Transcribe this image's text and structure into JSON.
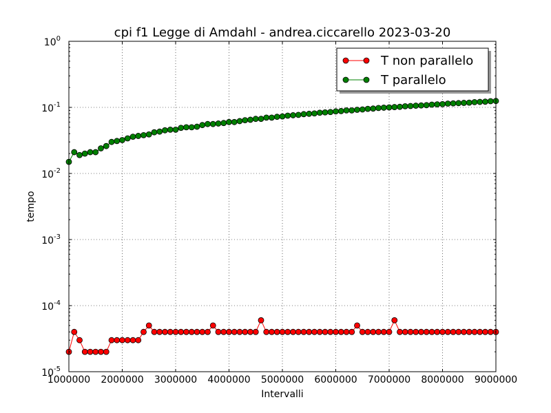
{
  "chart_data": {
    "type": "line",
    "title": "cpi f1  Legge di Amdahl  -  andrea.ciccarello  2023-03-20",
    "xlabel": "Intervalli",
    "ylabel": "tempo",
    "xlim": [
      1000000,
      9000000
    ],
    "ylim": [
      1e-05,
      1
    ],
    "yscale": "log",
    "grid": true,
    "legend_position": "top-right",
    "x_ticks": [
      "1000000",
      "2000000",
      "3000000",
      "4000000",
      "5000000",
      "6000000",
      "7000000",
      "8000000",
      "9000000"
    ],
    "y_ticks": [
      {
        "base": "10",
        "exp": "0"
      },
      {
        "base": "10",
        "exp": "-1"
      },
      {
        "base": "10",
        "exp": "-2"
      },
      {
        "base": "10",
        "exp": "-3"
      },
      {
        "base": "10",
        "exp": "-4"
      },
      {
        "base": "10",
        "exp": "-5"
      }
    ],
    "x": [
      1000000,
      1100000,
      1200000,
      1300000,
      1400000,
      1500000,
      1600000,
      1700000,
      1800000,
      1900000,
      2000000,
      2100000,
      2200000,
      2300000,
      2400000,
      2500000,
      2600000,
      2700000,
      2800000,
      2900000,
      3000000,
      3100000,
      3200000,
      3300000,
      3400000,
      3500000,
      3600000,
      3700000,
      3800000,
      3900000,
      4000000,
      4100000,
      4200000,
      4300000,
      4400000,
      4500000,
      4600000,
      4700000,
      4800000,
      4900000,
      5000000,
      5100000,
      5200000,
      5300000,
      5400000,
      5500000,
      5600000,
      5700000,
      5800000,
      5900000,
      6000000,
      6100000,
      6200000,
      6300000,
      6400000,
      6500000,
      6600000,
      6700000,
      6800000,
      6900000,
      7000000,
      7100000,
      7200000,
      7300000,
      7400000,
      7500000,
      7600000,
      7700000,
      7800000,
      7900000,
      8000000,
      8100000,
      8200000,
      8300000,
      8400000,
      8500000,
      8600000,
      8700000,
      8800000,
      8900000,
      9000000
    ],
    "series": [
      {
        "name": "T non parallelo",
        "color": "#ff0000",
        "values": [
          2e-05,
          4e-05,
          3e-05,
          2e-05,
          2e-05,
          2e-05,
          2e-05,
          2e-05,
          3e-05,
          3e-05,
          3e-05,
          3e-05,
          3e-05,
          3e-05,
          4e-05,
          5e-05,
          4e-05,
          4e-05,
          4e-05,
          4e-05,
          4e-05,
          4e-05,
          4e-05,
          4e-05,
          4e-05,
          4e-05,
          4e-05,
          5e-05,
          4e-05,
          4e-05,
          4e-05,
          4e-05,
          4e-05,
          4e-05,
          4e-05,
          4e-05,
          6e-05,
          4e-05,
          4e-05,
          4e-05,
          4e-05,
          4e-05,
          4e-05,
          4e-05,
          4e-05,
          4e-05,
          4e-05,
          4e-05,
          4e-05,
          4e-05,
          4e-05,
          4e-05,
          4e-05,
          4e-05,
          5e-05,
          4e-05,
          4e-05,
          4e-05,
          4e-05,
          4e-05,
          4e-05,
          6e-05,
          4e-05,
          4e-05,
          4e-05,
          4e-05,
          4e-05,
          4e-05,
          4e-05,
          4e-05,
          4e-05,
          4e-05,
          4e-05,
          4e-05,
          4e-05,
          4e-05,
          4e-05,
          4e-05,
          4e-05,
          4e-05,
          4e-05
        ]
      },
      {
        "name": "T parallelo",
        "color": "#008000",
        "values": [
          0.015,
          0.021,
          0.019,
          0.02,
          0.021,
          0.021,
          0.024,
          0.026,
          0.03,
          0.031,
          0.032,
          0.034,
          0.036,
          0.037,
          0.038,
          0.039,
          0.042,
          0.043,
          0.045,
          0.046,
          0.046,
          0.049,
          0.05,
          0.05,
          0.051,
          0.054,
          0.056,
          0.056,
          0.057,
          0.058,
          0.06,
          0.06,
          0.062,
          0.064,
          0.065,
          0.067,
          0.067,
          0.07,
          0.07,
          0.072,
          0.073,
          0.075,
          0.076,
          0.077,
          0.079,
          0.08,
          0.081,
          0.083,
          0.084,
          0.085,
          0.087,
          0.088,
          0.09,
          0.09,
          0.092,
          0.093,
          0.095,
          0.096,
          0.098,
          0.099,
          0.1,
          0.101,
          0.102,
          0.104,
          0.105,
          0.106,
          0.107,
          0.108,
          0.11,
          0.111,
          0.112,
          0.114,
          0.115,
          0.116,
          0.117,
          0.118,
          0.12,
          0.121,
          0.122,
          0.124,
          0.125
        ]
      }
    ]
  }
}
